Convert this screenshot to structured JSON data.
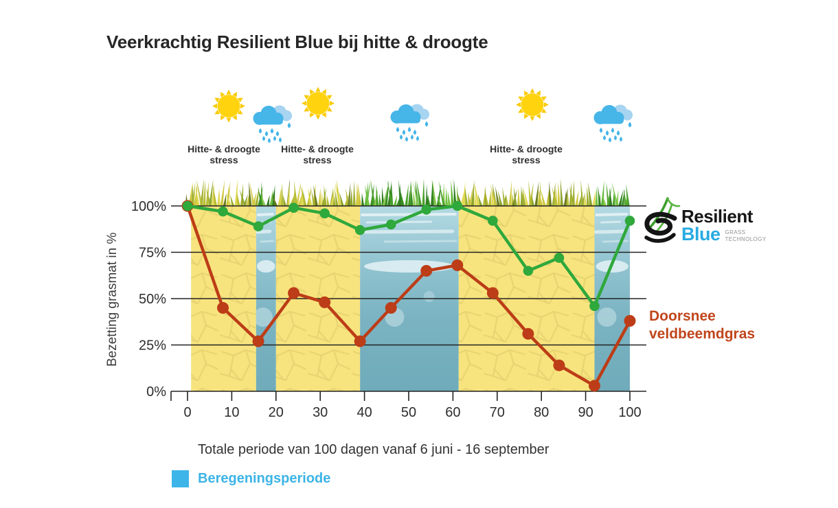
{
  "title": "Veerkrachtig Resilient Blue bij hitte & droogte",
  "weather": {
    "stress_label": "Hitte- & droogte stress",
    "icons": [
      "sun",
      "rain-cloud",
      "sun",
      "rain-cloud",
      "sun",
      "rain-cloud"
    ],
    "stress_label_count": 3
  },
  "logo": {
    "word1": "Resilient",
    "word2": "Blue",
    "tag1": "GRASS",
    "tag2": "TECHNOLOGY"
  },
  "labels": {
    "doorsnee": "Doorsnee veldbeemdgras"
  },
  "chart_data": {
    "type": "line",
    "x": [
      0,
      8,
      16,
      24,
      31,
      39,
      46,
      54,
      61,
      69,
      77,
      84,
      92,
      100
    ],
    "series": [
      {
        "name": "Resilient Blue",
        "color": "#2FA83C",
        "values": [
          100,
          97,
          89,
          99,
          96,
          87,
          90,
          98,
          100,
          92,
          65,
          72,
          46,
          92
        ]
      },
      {
        "name": "Doorsnee veldbeemdgras",
        "color": "#BC3D17",
        "values": [
          100,
          45,
          27,
          53,
          48,
          27,
          45,
          65,
          68,
          53,
          31,
          14,
          3,
          38
        ]
      }
    ],
    "title": "",
    "xlabel": "Totale periode van 100 dagen vanaf 6 juni - 16 september",
    "ylabel": "Bezetting grasmat in %",
    "xlim": [
      0,
      100
    ],
    "ylim": [
      0,
      100
    ],
    "grid": true,
    "legend_position": "bottom-left",
    "x_ticks": [
      0,
      10,
      20,
      30,
      40,
      50,
      60,
      70,
      80,
      90,
      100
    ],
    "y_ticks": [
      {
        "label": "100%",
        "value": 100
      },
      {
        "label": "75%",
        "value": 75
      },
      {
        "label": "50%",
        "value": 50
      },
      {
        "label": "25%",
        "value": 25
      },
      {
        "label": "0%",
        "value": 0
      }
    ],
    "bands": [
      {
        "type": "drought",
        "from": 0.8,
        "to": 15.5
      },
      {
        "type": "irrigation",
        "from": 15.5,
        "to": 20
      },
      {
        "type": "drought",
        "from": 20,
        "to": 39
      },
      {
        "type": "irrigation",
        "from": 39,
        "to": 61.3
      },
      {
        "type": "drought",
        "from": 61.3,
        "to": 92
      },
      {
        "type": "irrigation",
        "from": 92,
        "to": 100
      }
    ],
    "legend": {
      "label": "Beregeningsperiode",
      "color": "#3DB5E8"
    },
    "band_colors": {
      "drought": "#F8E47E",
      "irrigation_top": "#B3DAE2",
      "irrigation_bottom": "#6FABBA"
    }
  }
}
